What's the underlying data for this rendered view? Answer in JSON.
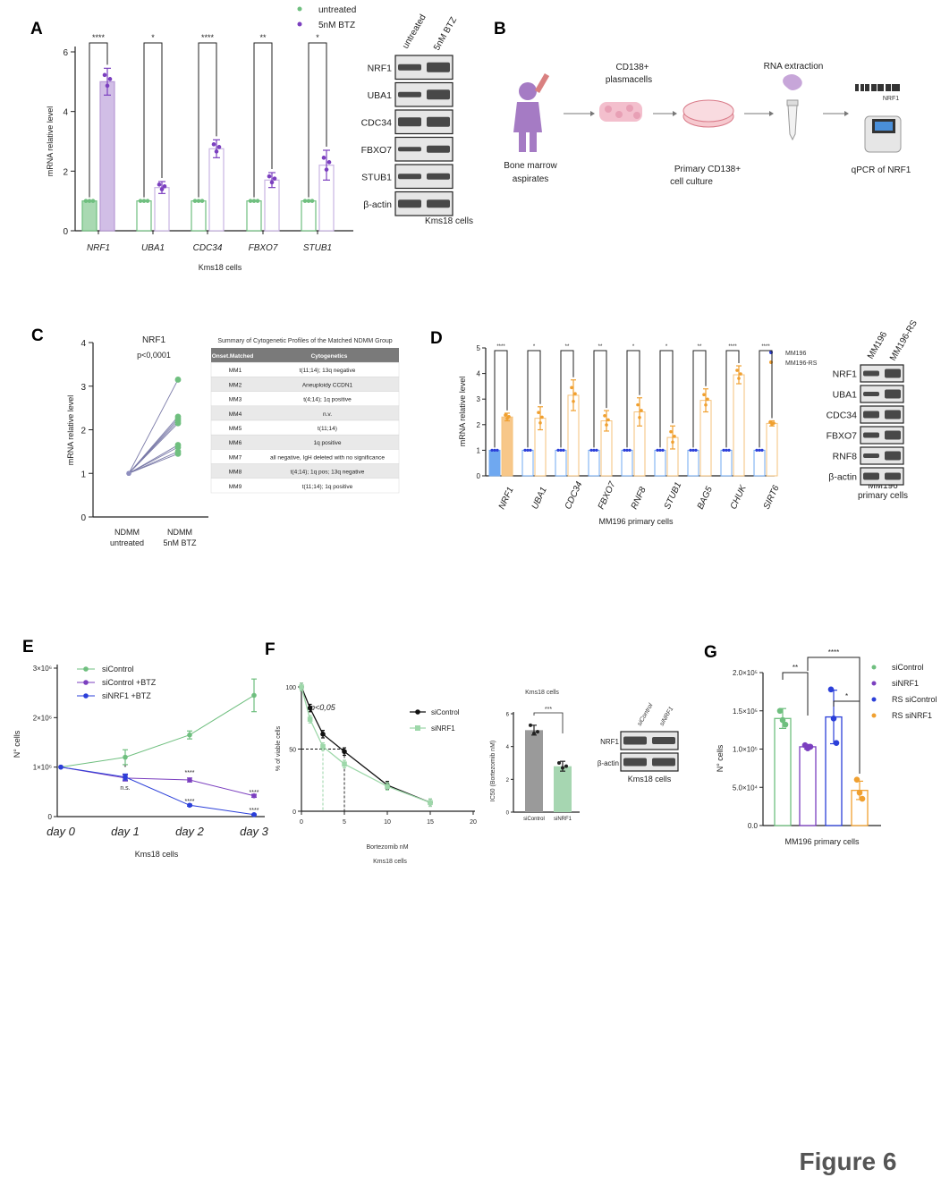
{
  "figure_label": "Figure 6",
  "panels": {
    "A": {
      "letter": "A",
      "legend": [
        "untreated",
        "5nM BTZ"
      ],
      "xlabel": "Kms18 cells",
      "ylabel": "mRNA relative level",
      "blot_header": [
        "untreated",
        "5nM BTZ"
      ],
      "blot_rows": [
        "NRF1",
        "UBA1",
        "CDC34",
        "FBXO7",
        "STUB1",
        "β-actin"
      ],
      "blot_caption": "Kms18 cells"
    },
    "B": {
      "letter": "B",
      "labels": {
        "bone_marrow": [
          "Bone marrow",
          "aspirates"
        ],
        "cd138": [
          "CD138+",
          "plasmacells"
        ],
        "rna": "RNA extraction",
        "culture": [
          "Primary CD138+",
          "cell culture"
        ],
        "qpcr": "qPCR of NRF1",
        "barcode_label": "NRF1"
      }
    },
    "C": {
      "letter": "C",
      "title": "NRF1",
      "pvalue": "p<0,0001",
      "ylabel": "mRNA relative level",
      "xticks": [
        [
          "NDMM",
          "untreated"
        ],
        [
          "NDMM",
          "5nM BTZ"
        ]
      ],
      "table_title": "Summary of Cytogenetic Profiles of the Matched NDMM Group",
      "table_headers": [
        "Onset.Matched",
        "Cytogenetics"
      ],
      "table_rows": [
        [
          "MM1",
          "t(11;14); 13q negative"
        ],
        [
          "MM2",
          "Aneuploidy CCDN1"
        ],
        [
          "MM3",
          "t(4;14); 1q positive"
        ],
        [
          "MM4",
          "n.v."
        ],
        [
          "MM5",
          "t(11;14)"
        ],
        [
          "MM6",
          "1q positive"
        ],
        [
          "MM7",
          "all negative, IgH deleted with no significance"
        ],
        [
          "MM8",
          "t(4;14); 1q pos; 13q negative"
        ],
        [
          "MM9",
          "t(11;14); 1q positive"
        ]
      ]
    },
    "D": {
      "letter": "D",
      "legend": [
        "MM196",
        "MM196-RS"
      ],
      "xlabel": "MM196 primary cells",
      "ylabel": "mRNA relative level",
      "blot_header": [
        "MM196",
        "MM196-RS"
      ],
      "blot_rows": [
        "NRF1",
        "UBA1",
        "CDC34",
        "FBXO7",
        "RNF8",
        "β-actin"
      ],
      "blot_caption": [
        "MM196",
        "primary cells"
      ]
    },
    "E": {
      "letter": "E",
      "ylabel": "N° cells",
      "xlabel": "Kms18 cells",
      "annotations": [
        "*",
        "n.s.",
        "****",
        "****",
        "****",
        "****"
      ]
    },
    "F": {
      "letter": "F",
      "pvalue": "p<0,05",
      "ylabel": "% of viable cells",
      "xlabel": [
        "Bortezomib nM",
        "Kms18 cells"
      ],
      "inset_title": "Kms18 cells",
      "inset_ylabel": "IC50 (Bortezomib nM)",
      "inset_sig": "***",
      "blot_header": [
        "siControl",
        "siNRF1"
      ],
      "blot_rows": [
        "NRF1",
        "β-actin"
      ],
      "blot_caption": "Kms18 cells"
    },
    "G": {
      "letter": "G",
      "ylabel": "N° cells",
      "xlabel": "MM196 primary cells",
      "sig": [
        "**",
        "****",
        "*"
      ]
    }
  },
  "colors": {
    "green": "#6fbf7f",
    "purple": "#7b3fbf",
    "blue": "#2b3fd9",
    "orange": "#f0a030"
  },
  "chart_data": [
    {
      "id": "A",
      "type": "bar",
      "categories": [
        "NRF1",
        "UBA1",
        "CDC34",
        "FBXO7",
        "STUB1"
      ],
      "series": [
        {
          "name": "untreated",
          "values": [
            1,
            1,
            1,
            1,
            1
          ]
        },
        {
          "name": "5nM BTZ",
          "values": [
            5.0,
            1.45,
            2.75,
            1.7,
            2.2
          ],
          "err": [
            0.45,
            0.2,
            0.3,
            0.25,
            0.5
          ]
        }
      ],
      "significance": [
        "****",
        "*",
        "****",
        "**",
        "*"
      ],
      "ylim": [
        0,
        6
      ],
      "yticks": [
        0,
        2,
        4,
        6
      ],
      "xlabel": "Kms18 cells",
      "ylabel": "mRNA relative level"
    },
    {
      "id": "C",
      "type": "scatter",
      "title": "NRF1",
      "x": [
        "NDMM untreated",
        "NDMM 5nM BTZ"
      ],
      "pairs": [
        [
          1,
          3.15
        ],
        [
          1,
          2.3
        ],
        [
          1,
          2.25
        ],
        [
          1,
          2.2
        ],
        [
          1,
          2.15
        ],
        [
          1,
          1.65
        ],
        [
          1,
          1.6
        ],
        [
          1,
          1.5
        ],
        [
          1,
          1.45
        ]
      ],
      "ylim": [
        0,
        4
      ],
      "yticks": [
        0,
        1,
        2,
        3,
        4
      ],
      "ylabel": "mRNA relative level"
    },
    {
      "id": "D",
      "type": "bar",
      "categories": [
        "NRF1",
        "UBA1",
        "CDC34",
        "FBXO7",
        "RNF8",
        "STUB1",
        "BAG5",
        "CHUK",
        "SIRT6"
      ],
      "series": [
        {
          "name": "MM196",
          "values": [
            1,
            1,
            1,
            1,
            1,
            1,
            1,
            1,
            1
          ]
        },
        {
          "name": "MM196-RS",
          "values": [
            2.3,
            2.25,
            3.15,
            2.15,
            2.5,
            1.5,
            2.95,
            3.95,
            2.05
          ],
          "err": [
            0.15,
            0.45,
            0.6,
            0.4,
            0.55,
            0.45,
            0.45,
            0.35,
            0.1
          ]
        }
      ],
      "significance": [
        "****",
        "*",
        "**",
        "**",
        "*",
        "*",
        "**",
        "****",
        "****"
      ],
      "ylim": [
        0,
        5
      ],
      "yticks": [
        0,
        1,
        2,
        3,
        4,
        5
      ],
      "xlabel": "MM196 primary cells",
      "ylabel": "mRNA relative level"
    },
    {
      "id": "E",
      "type": "line",
      "x": [
        "day 0",
        "day 1",
        "day 2",
        "day 3"
      ],
      "series": [
        {
          "name": "siControl",
          "values": [
            1000000,
            1200000,
            1650000,
            2450000
          ],
          "err": [
            0,
            150000,
            80000,
            330000
          ]
        },
        {
          "name": "siControl +BTZ",
          "values": [
            1000000,
            780000,
            740000,
            420000
          ],
          "err": [
            0,
            60000,
            40000,
            30000
          ]
        },
        {
          "name": "siNRF1 +BTZ",
          "values": [
            1000000,
            800000,
            230000,
            40000
          ],
          "err": [
            0,
            60000,
            20000,
            10000
          ]
        }
      ],
      "ylim": [
        0,
        3000000
      ],
      "yticks": [
        [
          "0",
          0
        ],
        [
          "1×10⁶",
          1000000
        ],
        [
          "2×10⁶",
          2000000
        ],
        [
          "3×10⁶",
          3000000
        ]
      ],
      "ylabel": "N° cells",
      "xlabel": "Kms18 cells"
    },
    {
      "id": "F",
      "type": "line",
      "x": [
        0,
        1,
        2.5,
        5,
        10,
        15
      ],
      "series": [
        {
          "name": "siControl",
          "values": [
            100,
            83,
            62,
            48,
            21,
            7
          ]
        },
        {
          "name": "siNRF1",
          "values": [
            100,
            74,
            52,
            38,
            20,
            7
          ]
        }
      ],
      "xlim": [
        0,
        20
      ],
      "xticks": [
        0,
        5,
        10,
        15,
        20
      ],
      "ylim": [
        0,
        100
      ],
      "yticks": [
        0,
        50,
        100
      ],
      "ylabel": "% of viable cells",
      "xlabel": "Bortezomib nM"
    },
    {
      "id": "F-inset",
      "type": "bar",
      "title": "Kms18 cells",
      "categories": [
        "siControl",
        "siNRF1"
      ],
      "values": [
        5.0,
        2.8
      ],
      "err": [
        0.3,
        0.3
      ],
      "points": [
        [
          5.3,
          4.8,
          4.9
        ],
        [
          3.0,
          2.7,
          2.8
        ]
      ],
      "ylim": [
        0,
        6
      ],
      "yticks": [
        0,
        2,
        4,
        6
      ],
      "ylabel": "IC50 (Bortezomib nM)"
    },
    {
      "id": "G",
      "type": "bar",
      "categories": [
        "siControl",
        "siNRF1",
        "RS siControl",
        "RS siNRF1"
      ],
      "values": [
        140000,
        103000,
        142000,
        46000
      ],
      "err": [
        13000,
        3000,
        35000,
        12000
      ],
      "points": [
        [
          150000,
          138000,
          132000
        ],
        [
          105000,
          101000,
          103000
        ],
        [
          178000,
          140000,
          108000
        ],
        [
          60000,
          43000,
          35000
        ]
      ],
      "ylim": [
        0,
        200000
      ],
      "yticks": [
        [
          "0.0",
          0
        ],
        [
          "5.0×10⁴",
          50000
        ],
        [
          "1.0×10⁵",
          100000
        ],
        [
          "1.5×10⁵",
          150000
        ],
        [
          "2.0×10⁵",
          200000
        ]
      ],
      "ylabel": "N° cells",
      "xlabel": "MM196 primary cells"
    }
  ]
}
